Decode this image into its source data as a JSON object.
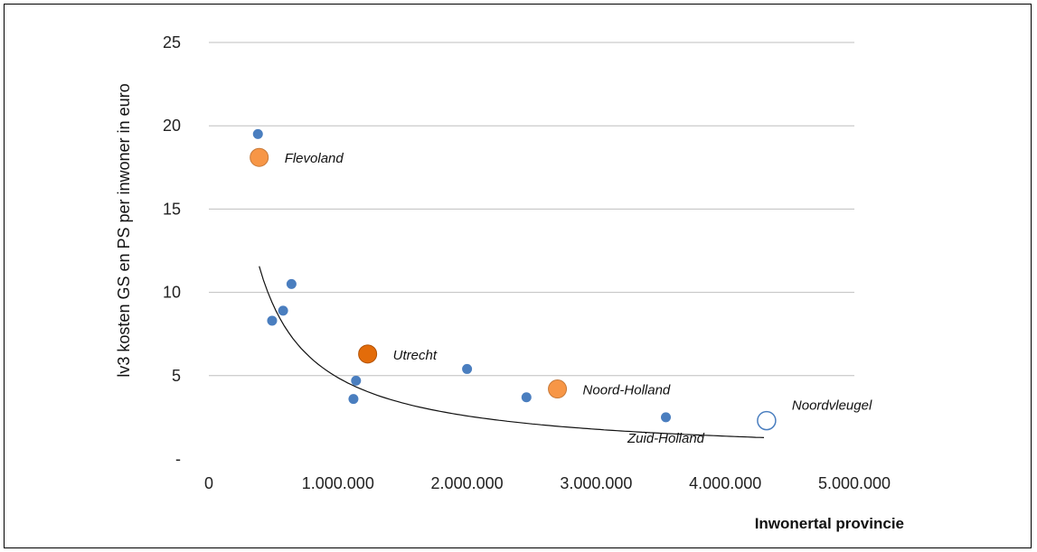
{
  "chart_data": {
    "type": "scatter",
    "title": "",
    "xlabel": "Inwonertal provincie",
    "ylabel": "lv3 kosten GS en PS per inwoner in euro",
    "xlim": [
      0,
      5000000
    ],
    "ylim": [
      0,
      25
    ],
    "x_ticks": [
      0,
      1000000,
      2000000,
      3000000,
      4000000,
      5000000
    ],
    "x_tick_labels": [
      "0",
      "1.000.000",
      "2.000.000",
      "3.000.000",
      "4.000.000",
      "5.000.000"
    ],
    "y_ticks": [
      0,
      5,
      10,
      15,
      20,
      25
    ],
    "y_tick_labels": [
      "-",
      "5",
      "10",
      "15",
      "20",
      "25"
    ],
    "grid": "horizontal",
    "colors": {
      "province": "#4a7ebf",
      "highlight": "#f79646",
      "utrecht": "#e36c0a",
      "grid": "#bfbfbf",
      "trend": "#111111"
    },
    "points": [
      {
        "x": 380000,
        "y": 19.5
      },
      {
        "x": 490000,
        "y": 8.3
      },
      {
        "x": 575000,
        "y": 8.9
      },
      {
        "x": 640000,
        "y": 10.5
      },
      {
        "x": 1120000,
        "y": 3.6
      },
      {
        "x": 1140000,
        "y": 4.7
      },
      {
        "x": 2000000,
        "y": 5.4
      },
      {
        "x": 2460000,
        "y": 3.7
      },
      {
        "x": 3540000,
        "y": 2.5
      }
    ],
    "highlighted": [
      {
        "label": "Flevoland",
        "x": 390000,
        "y": 18.1,
        "style": "highlight"
      },
      {
        "label": "Utrecht",
        "x": 1230000,
        "y": 6.3,
        "style": "utrecht"
      },
      {
        "label": "Noord-Holland",
        "x": 2700000,
        "y": 4.2,
        "style": "highlight"
      },
      {
        "label": "Noordvleugel",
        "x": 4320000,
        "y": 2.3,
        "style": "hollow"
      }
    ],
    "annotations": [
      {
        "text": "Zuid-Holland",
        "x": 3540000,
        "y": 2.5
      }
    ],
    "trendline": {
      "type": "power",
      "a": 1550000,
      "b": -0.917,
      "x_range": [
        390000,
        4300000
      ]
    }
  }
}
